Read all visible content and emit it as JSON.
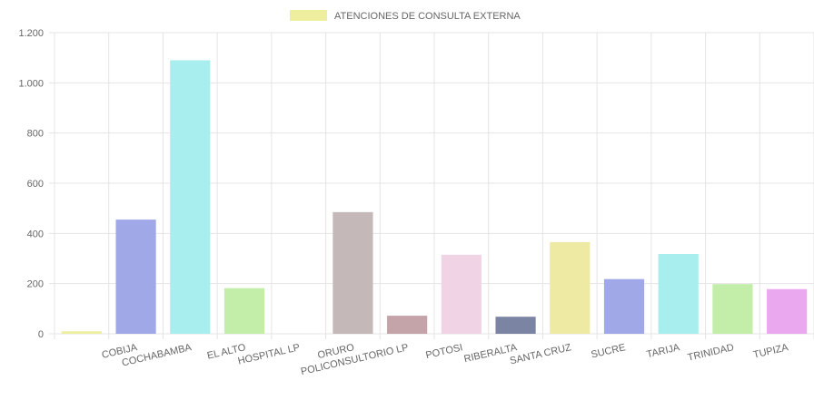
{
  "chart_data": {
    "type": "bar",
    "legend": {
      "label": "ATENCIONES DE CONSULTA EXTERNA",
      "color": "#eeee9f",
      "placement": "top-center"
    },
    "ylim": [
      0,
      1200
    ],
    "yticks": [
      0,
      200,
      400,
      600,
      800,
      1000,
      1200
    ],
    "ytick_labels": [
      "0",
      "200",
      "400",
      "600",
      "800",
      "1.000",
      "1.200"
    ],
    "grid": true,
    "categories": [
      "",
      "COBIJA",
      "COCHABAMBA",
      "EL ALTO",
      "HOSPITAL LP",
      "ORURO",
      "POLICONSULTORIO LP",
      "POTOSI",
      "RIBERALTA",
      "SANTA CRUZ",
      "SUCRE",
      "TARIJA",
      "TRINIDAD",
      "TUPIZA"
    ],
    "values": [
      10,
      455,
      1090,
      182,
      0,
      485,
      72,
      315,
      68,
      365,
      218,
      318,
      198,
      178
    ],
    "colors": [
      "#eeee9f",
      "#a0a8e8",
      "#a8eeee",
      "#c2eeaa",
      "#dddddd",
      "#c4b8b8",
      "#c4a4a8",
      "#f0d4e6",
      "#7c84a4",
      "#eeeaa4",
      "#a0a8e8",
      "#a8eeee",
      "#c2eeaa",
      "#eaa8ee"
    ]
  }
}
